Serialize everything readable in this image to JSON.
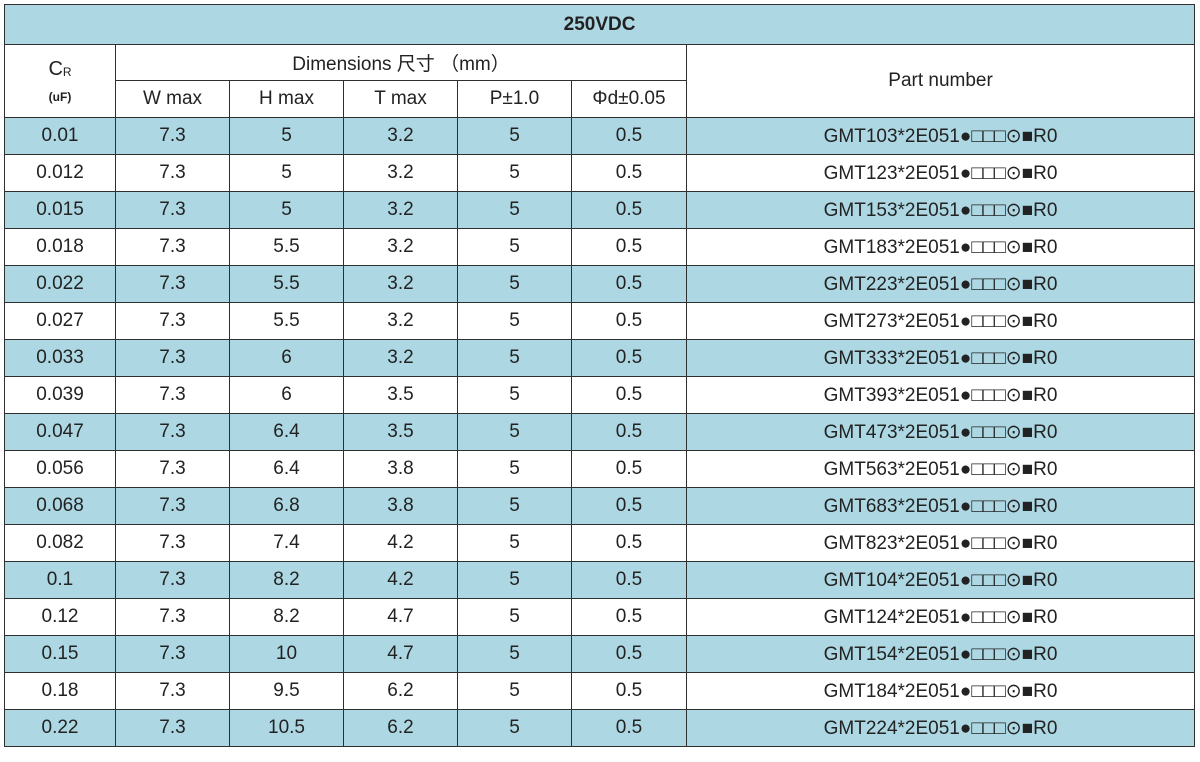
{
  "title": "250VDC",
  "header": {
    "cr_symbol": "C",
    "cr_subscript": "R",
    "cr_unit": "(uF)",
    "dimensions_label": "Dimensions 尺寸 （mm）",
    "part_number_label": "Part number",
    "columns": [
      "W max",
      "H max",
      "T max",
      "P±1.0",
      "Φd±0.05"
    ]
  },
  "colors": {
    "band": "#add8e3",
    "border": "#2f2f2f",
    "text": "#222222"
  },
  "rows": [
    {
      "cr": "0.01",
      "w": "7.3",
      "h": "5",
      "t": "3.2",
      "p": "5",
      "d": "0.5",
      "part": "GMT103*2E051●□□□⊙■R0"
    },
    {
      "cr": "0.012",
      "w": "7.3",
      "h": "5",
      "t": "3.2",
      "p": "5",
      "d": "0.5",
      "part": "GMT123*2E051●□□□⊙■R0"
    },
    {
      "cr": "0.015",
      "w": "7.3",
      "h": "5",
      "t": "3.2",
      "p": "5",
      "d": "0.5",
      "part": "GMT153*2E051●□□□⊙■R0"
    },
    {
      "cr": "0.018",
      "w": "7.3",
      "h": "5.5",
      "t": "3.2",
      "p": "5",
      "d": "0.5",
      "part": "GMT183*2E051●□□□⊙■R0"
    },
    {
      "cr": "0.022",
      "w": "7.3",
      "h": "5.5",
      "t": "3.2",
      "p": "5",
      "d": "0.5",
      "part": "GMT223*2E051●□□□⊙■R0"
    },
    {
      "cr": "0.027",
      "w": "7.3",
      "h": "5.5",
      "t": "3.2",
      "p": "5",
      "d": "0.5",
      "part": "GMT273*2E051●□□□⊙■R0"
    },
    {
      "cr": "0.033",
      "w": "7.3",
      "h": "6",
      "t": "3.2",
      "p": "5",
      "d": "0.5",
      "part": "GMT333*2E051●□□□⊙■R0"
    },
    {
      "cr": "0.039",
      "w": "7.3",
      "h": "6",
      "t": "3.5",
      "p": "5",
      "d": "0.5",
      "part": "GMT393*2E051●□□□⊙■R0"
    },
    {
      "cr": "0.047",
      "w": "7.3",
      "h": "6.4",
      "t": "3.5",
      "p": "5",
      "d": "0.5",
      "part": "GMT473*2E051●□□□⊙■R0"
    },
    {
      "cr": "0.056",
      "w": "7.3",
      "h": "6.4",
      "t": "3.8",
      "p": "5",
      "d": "0.5",
      "part": "GMT563*2E051●□□□⊙■R0"
    },
    {
      "cr": "0.068",
      "w": "7.3",
      "h": "6.8",
      "t": "3.8",
      "p": "5",
      "d": "0.5",
      "part": "GMT683*2E051●□□□⊙■R0"
    },
    {
      "cr": "0.082",
      "w": "7.3",
      "h": "7.4",
      "t": "4.2",
      "p": "5",
      "d": "0.5",
      "part": "GMT823*2E051●□□□⊙■R0"
    },
    {
      "cr": "0.1",
      "w": "7.3",
      "h": "8.2",
      "t": "4.2",
      "p": "5",
      "d": "0.5",
      "part": "GMT104*2E051●□□□⊙■R0"
    },
    {
      "cr": "0.12",
      "w": "7.3",
      "h": "8.2",
      "t": "4.7",
      "p": "5",
      "d": "0.5",
      "part": "GMT124*2E051●□□□⊙■R0"
    },
    {
      "cr": "0.15",
      "w": "7.3",
      "h": "10",
      "t": "4.7",
      "p": "5",
      "d": "0.5",
      "part": "GMT154*2E051●□□□⊙■R0"
    },
    {
      "cr": "0.18",
      "w": "7.3",
      "h": "9.5",
      "t": "6.2",
      "p": "5",
      "d": "0.5",
      "part": "GMT184*2E051●□□□⊙■R0"
    },
    {
      "cr": "0.22",
      "w": "7.3",
      "h": "10.5",
      "t": "6.2",
      "p": "5",
      "d": "0.5",
      "part": "GMT224*2E051●□□□⊙■R0"
    }
  ]
}
